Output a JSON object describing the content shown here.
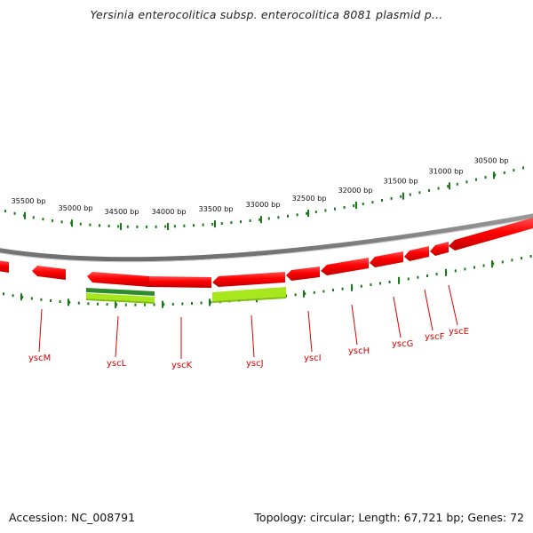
{
  "title": "Yersinia enterocolitica subsp. enterocolitica 8081 plasmid p...",
  "footer": {
    "accession": "Accession: NC_008791",
    "summary": "Topology: circular; Length: 67,721 bp; Genes: 72"
  },
  "scale_labels": [
    "35500 bp",
    "35000 bp",
    "34500 bp",
    "34000 bp",
    "33500 bp",
    "33000 bp",
    "32500 bp",
    "32000 bp",
    "31500 bp",
    "31000 bp",
    "30500 bp"
  ],
  "genes": [
    {
      "name": "yscM"
    },
    {
      "name": "yscL"
    },
    {
      "name": "yscK"
    },
    {
      "name": "yscJ"
    },
    {
      "name": "yscI"
    },
    {
      "name": "yscH"
    },
    {
      "name": "yscG"
    },
    {
      "name": "yscF"
    },
    {
      "name": "yscE"
    }
  ],
  "colors": {
    "gene_fill": "#ff0000",
    "gene_dark": "#b40000",
    "backbone": "#8c8c8c",
    "ticks": "#1a7a1a",
    "gene_label": "#d40000",
    "feature_dark_green": "#2e8b2e",
    "feature_light_green": "#a8e61d"
  }
}
